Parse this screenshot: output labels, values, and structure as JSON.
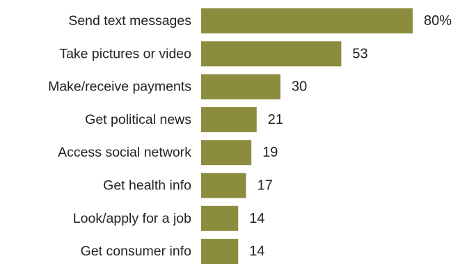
{
  "chart_data": {
    "type": "bar",
    "orientation": "horizontal",
    "categories": [
      "Send text messages",
      "Take pictures or video",
      "Make/receive payments",
      "Get political news",
      "Access social network",
      "Get health info",
      "Look/apply for a job",
      "Get consumer info"
    ],
    "values": [
      80,
      53,
      30,
      21,
      19,
      17,
      14,
      14
    ],
    "value_labels": [
      "80%",
      "53",
      "30",
      "21",
      "19",
      "17",
      "14",
      "14"
    ],
    "xlim": [
      0,
      80
    ],
    "grid": false,
    "legend": "none",
    "bar_color": "#8c8c3e"
  }
}
